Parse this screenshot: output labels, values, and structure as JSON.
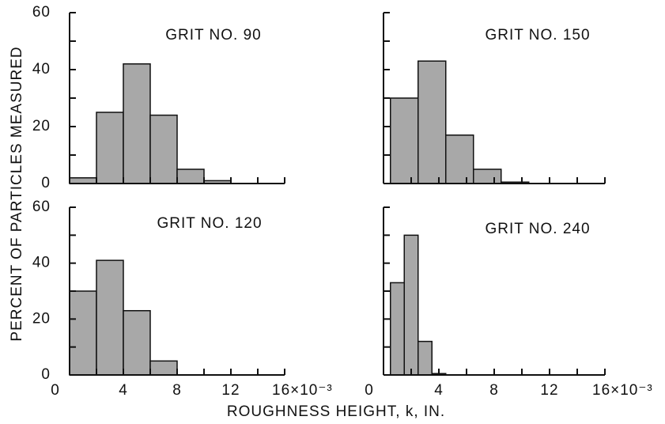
{
  "ylabel": "PERCENT OF PARTICLES MEASURED",
  "xlabel": "ROUGHNESS HEIGHT, k, IN.",
  "chart_data": [
    {
      "type": "histogram",
      "title": "GRIT NO. 90",
      "bins": [
        0,
        2,
        4,
        6,
        8,
        10,
        12
      ],
      "values": [
        2,
        25,
        42,
        24,
        5,
        1
      ],
      "color": "#a8a8a8",
      "xlim": [
        0,
        16
      ],
      "ylim": [
        0,
        60
      ],
      "yticks": [
        0,
        20,
        40,
        60
      ]
    },
    {
      "type": "histogram",
      "title": "GRIT NO. 150",
      "bins": [
        0.5,
        2.5,
        4.5,
        6.5,
        8.5,
        10.5
      ],
      "values": [
        30,
        43,
        17,
        5,
        0.5
      ],
      "color": "#a8a8a8",
      "xlim": [
        0,
        16
      ],
      "ylim": [
        0,
        60
      ]
    },
    {
      "type": "histogram",
      "title": "GRIT NO. 120",
      "bins": [
        0,
        2,
        4,
        6,
        8
      ],
      "values": [
        30,
        41,
        23,
        5
      ],
      "color": "#a8a8a8",
      "xlim": [
        0,
        16
      ],
      "ylim": [
        0,
        60
      ],
      "yticks": [
        0,
        20,
        40,
        60
      ],
      "xticks": [
        0,
        4,
        8,
        12,
        {
          "value": 16,
          "label": "16×10⁻³"
        }
      ]
    },
    {
      "type": "histogram",
      "title": "GRIT NO. 240",
      "bins": [
        0.5,
        1.5,
        2.5,
        3.5,
        4.5
      ],
      "values": [
        33,
        50,
        12,
        0.5
      ],
      "color": "#a8a8a8",
      "xlim": [
        0,
        16
      ],
      "ylim": [
        0,
        60
      ],
      "xticks": [
        0,
        4,
        8,
        12,
        {
          "value": 16,
          "label": "16×10⁻³"
        }
      ]
    }
  ]
}
